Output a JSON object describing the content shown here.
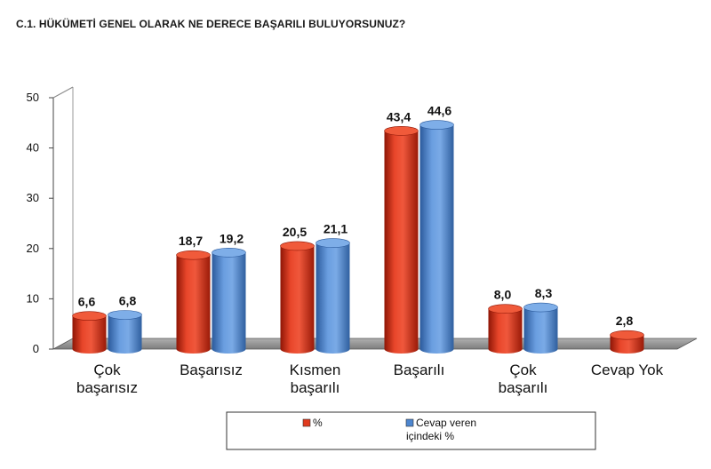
{
  "chart_data": {
    "type": "bar",
    "title": "C.1. HÜKÜMETİ GENEL OLARAK NE DERECE BAŞARILI BULUYORSUNUZ?",
    "xlabel": "",
    "ylabel": "",
    "ylim": [
      0,
      50
    ],
    "yticks": [
      0,
      10,
      20,
      30,
      40,
      50
    ],
    "categories": [
      [
        "Çok",
        "başarısız"
      ],
      [
        "Başarısız"
      ],
      [
        "Kısmen",
        "başarılı"
      ],
      [
        "Başarılı"
      ],
      [
        "Çok",
        "başarılı"
      ],
      [
        "Cevap Yok"
      ]
    ],
    "series": [
      {
        "name": "%",
        "color": "#e03a1e",
        "values": [
          6.6,
          18.7,
          20.5,
          43.4,
          8.0,
          2.8
        ],
        "labels": [
          "6,6",
          "18,7",
          "20,5",
          "43,4",
          "8,0",
          "2,8"
        ]
      },
      {
        "name": "Cevap veren içindeki %",
        "name_lines": [
          "Cevap veren",
          "içindeki %"
        ],
        "color": "#4d86cf",
        "values": [
          6.8,
          19.2,
          21.1,
          44.6,
          8.3,
          null
        ],
        "labels": [
          "6,8",
          "19,2",
          "21,1",
          "44,6",
          "8,3",
          ""
        ]
      }
    ],
    "legend_position": "bottom",
    "grid": false
  }
}
